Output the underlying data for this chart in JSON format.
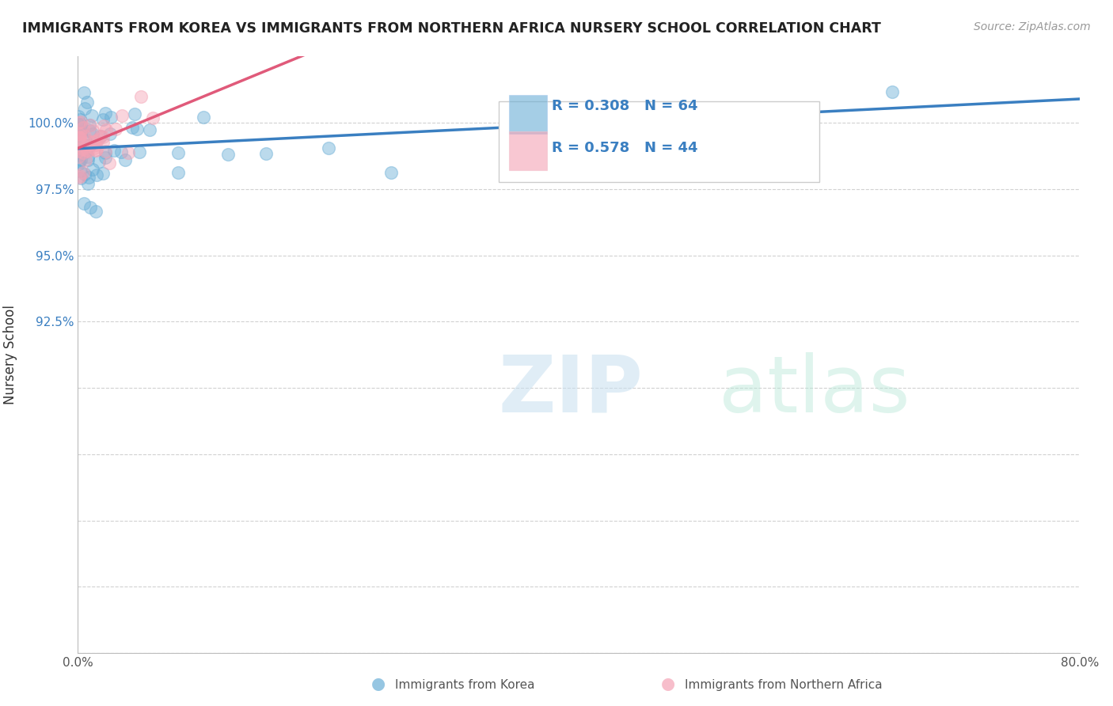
{
  "title": "IMMIGRANTS FROM KOREA VS IMMIGRANTS FROM NORTHERN AFRICA NURSERY SCHOOL CORRELATION CHART",
  "source": "Source: ZipAtlas.com",
  "xlabel_korea": "Immigrants from Korea",
  "xlabel_africa": "Immigrants from Northern Africa",
  "ylabel": "Nursery School",
  "R_korea": 0.308,
  "N_korea": 64,
  "R_africa": 0.578,
  "N_africa": 44,
  "korea_color": "#6aaed6",
  "africa_color": "#f4a3b5",
  "korea_line_color": "#3a7fc1",
  "africa_line_color": "#e05a7a",
  "background_color": "#ffffff",
  "xlim": [
    0.0,
    80.0
  ],
  "ylim": [
    80.0,
    102.5
  ],
  "ytick_positions": [
    80.0,
    82.5,
    85.0,
    87.5,
    90.0,
    92.5,
    95.0,
    97.5,
    100.0
  ],
  "ytick_labels": [
    "",
    "",
    "",
    "",
    "",
    "92.5%",
    "95.0%",
    "97.5%",
    "100.0%"
  ],
  "xtick_positions": [
    0.0,
    10.0,
    20.0,
    30.0,
    40.0,
    50.0,
    60.0,
    70.0,
    80.0
  ],
  "xtick_labels": [
    "0.0%",
    "",
    "",
    "",
    "",
    "",
    "",
    "",
    "80.0%"
  ],
  "watermark_zip": "ZIP",
  "watermark_atlas": "atlas"
}
